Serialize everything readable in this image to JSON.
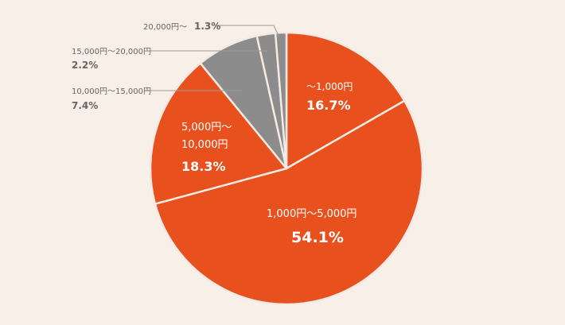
{
  "chart_data": {
    "type": "pie",
    "start_angle_deg": 0,
    "direction": "clockwise",
    "colors": {
      "orange": "#e8501e",
      "gray": "#8c8c8c",
      "border": "#f3ebe3",
      "background": "#f7efe8",
      "leader_line": "#9a9a9a",
      "outside_text": "#666666",
      "inside_text": "#ffffff"
    },
    "slices": [
      {
        "category": "〜1,000円",
        "category_line2": "",
        "percent_label": "16.7%",
        "value": 16.7,
        "color": "#e8501e"
      },
      {
        "category": "1,000円〜5,000円",
        "category_line2": "",
        "percent_label": "54.1%",
        "value": 54.1,
        "color": "#e8501e"
      },
      {
        "category": "5,000円〜",
        "category_line2": "10,000円",
        "percent_label": "18.3%",
        "value": 18.3,
        "color": "#e8501e"
      },
      {
        "category": "10,000円〜15,000円",
        "category_line2": "",
        "percent_label": "7.4%",
        "value": 7.4,
        "color": "#8c8c8c"
      },
      {
        "category": "15,000円〜20,000円",
        "category_line2": "",
        "percent_label": "2.2%",
        "value": 2.2,
        "color": "#8c8c8c"
      },
      {
        "category": "20,000円〜",
        "category_line2": "",
        "percent_label": "1.3%",
        "value": 1.3,
        "color": "#8c8c8c"
      }
    ]
  }
}
